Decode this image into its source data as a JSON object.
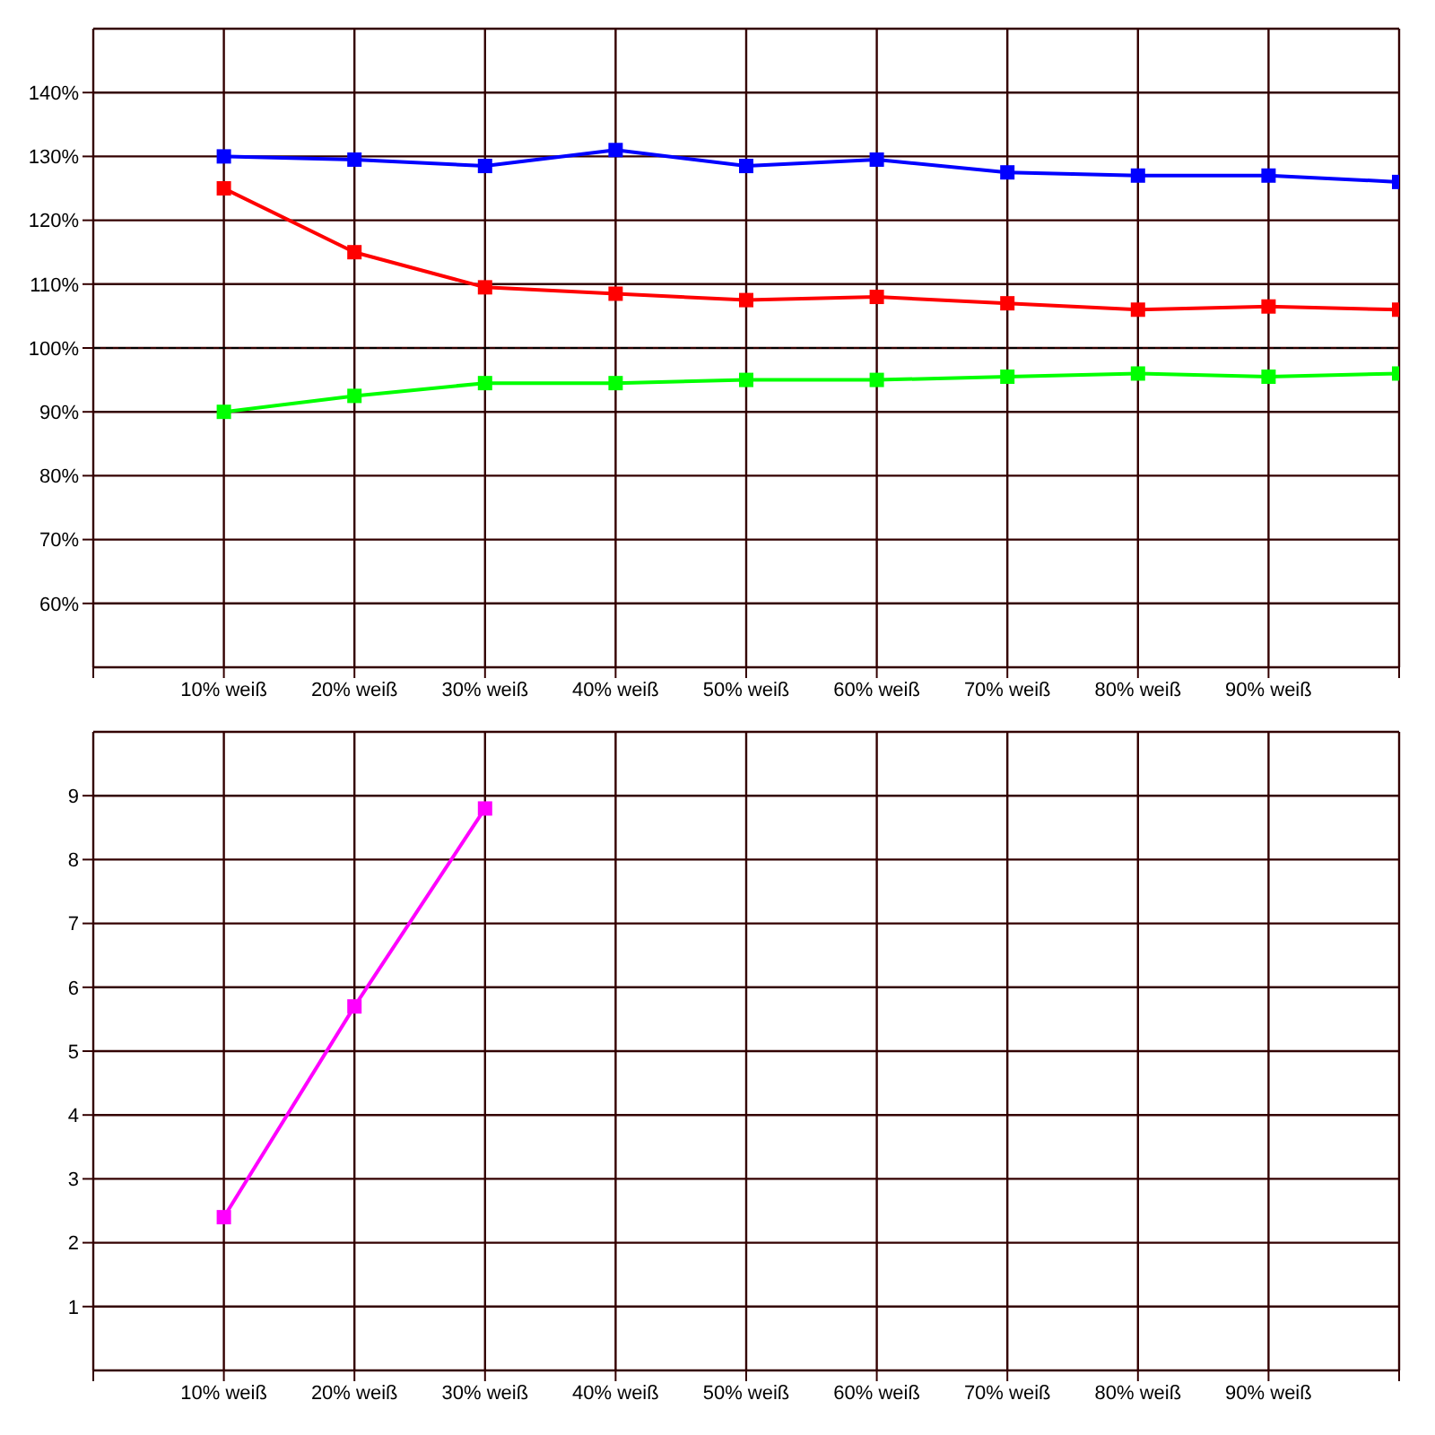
{
  "chart_data": [
    {
      "type": "line",
      "categories": [
        null,
        "10% weiß",
        "20% weiß",
        "30% weiß",
        "40% weiß",
        "50% weiß",
        "60% weiß",
        "70% weiß",
        "80% weiß",
        "90% weiß",
        null
      ],
      "series": [
        {
          "color": "#0000ff",
          "values": [
            null,
            130,
            129.5,
            128.5,
            131,
            128.5,
            129.5,
            127.5,
            127,
            127,
            126
          ]
        },
        {
          "color": "#ff0000",
          "values": [
            null,
            125,
            115,
            109.5,
            108.5,
            107.5,
            108,
            107,
            106,
            106.5,
            106
          ]
        },
        {
          "color": "#00ff00",
          "values": [
            null,
            90,
            92.5,
            94.5,
            94.5,
            95,
            95,
            95.5,
            96,
            95.5,
            96
          ]
        }
      ],
      "ylim": [
        50,
        150
      ],
      "yticks": [
        {
          "value": 60,
          "label": "60%"
        },
        {
          "value": 70,
          "label": "70%"
        },
        {
          "value": 80,
          "label": "80%"
        },
        {
          "value": 90,
          "label": "90%"
        },
        {
          "value": 100,
          "label": "100%"
        },
        {
          "value": 110,
          "label": "110%"
        },
        {
          "value": 120,
          "label": "120%"
        },
        {
          "value": 130,
          "label": "130%"
        },
        {
          "value": 140,
          "label": "140%"
        }
      ],
      "ref_lines": [
        {
          "axis": "y",
          "value": 100,
          "color": "#000000",
          "line_style": "dashed"
        }
      ],
      "grid": true,
      "marker": "square",
      "line_style": "solid",
      "legend": false
    },
    {
      "type": "line",
      "categories": [
        null,
        "10% weiß",
        "20% weiß",
        "30% weiß",
        "40% weiß",
        "50% weiß",
        "60% weiß",
        "70% weiß",
        "80% weiß",
        "90% weiß",
        null
      ],
      "series": [
        {
          "color": "#ff00ff",
          "values": [
            null,
            2.4,
            5.7,
            8.8,
            null,
            null,
            null,
            null,
            null,
            null,
            null
          ]
        }
      ],
      "ylim": [
        0,
        10
      ],
      "yticks": [
        1,
        2,
        3,
        4,
        5,
        6,
        7,
        8,
        9
      ],
      "grid": true,
      "marker": "square",
      "line_style": "solid",
      "legend": false
    }
  ]
}
